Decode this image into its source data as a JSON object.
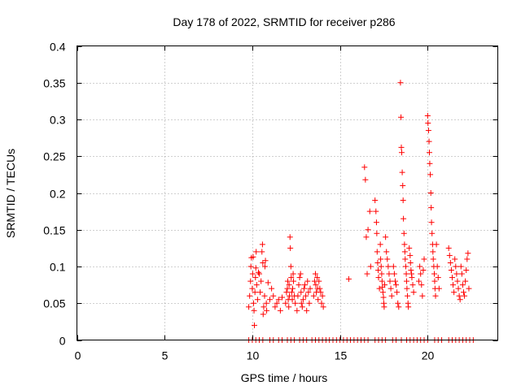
{
  "chart_data": {
    "type": "scatter",
    "title": "Day 178 of 2022, SRMTID for receiver p286",
    "xlabel": "GPS time / hours",
    "ylabel": "SRMTID / TECUs",
    "xlim": [
      0,
      24
    ],
    "ylim": [
      0,
      0.4
    ],
    "x_ticks": [
      0,
      5,
      10,
      15,
      20
    ],
    "x_tick_labels": [
      "0",
      "5",
      "10",
      "15",
      "20"
    ],
    "y_ticks": [
      0,
      0.05,
      0.1,
      0.15,
      0.2,
      0.25,
      0.3,
      0.35,
      0.4
    ],
    "y_tick_labels": [
      "0",
      "0.05",
      "0.1",
      "0.15",
      "0.2",
      "0.25",
      "0.3",
      "0.35",
      "0.4"
    ],
    "grid": true,
    "marker": "+",
    "marker_color": "#ff0000",
    "series": [
      {
        "name": "SRMTID",
        "points": [
          [
            9.8,
            0.045
          ],
          [
            9.85,
            0.06
          ],
          [
            9.9,
            0.08
          ],
          [
            9.92,
            0.1
          ],
          [
            9.95,
            0.112
          ],
          [
            10.0,
            0.07
          ],
          [
            10.02,
            0.09
          ],
          [
            10.05,
            0.113
          ],
          [
            10.07,
            0.05
          ],
          [
            10.1,
            0.04
          ],
          [
            10.12,
            0.02
          ],
          [
            10.15,
            0.065
          ],
          [
            10.18,
            0.085
          ],
          [
            10.2,
            0.098
          ],
          [
            10.22,
            0.12
          ],
          [
            10.25,
            0.075
          ],
          [
            10.3,
            0.055
          ],
          [
            10.35,
            0.092
          ],
          [
            10.4,
            0.09
          ],
          [
            10.45,
            0.065
          ],
          [
            10.5,
            0.08
          ],
          [
            10.55,
            0.12
          ],
          [
            10.58,
            0.13
          ],
          [
            10.6,
            0.105
          ],
          [
            10.62,
            0.035
          ],
          [
            10.65,
            0.045
          ],
          [
            10.7,
            0.06
          ],
          [
            10.72,
            0.1
          ],
          [
            10.75,
            0.108
          ],
          [
            10.8,
            0.05
          ],
          [
            10.82,
            0.04
          ],
          [
            10.9,
            0.078
          ],
          [
            11.0,
            0.055
          ],
          [
            11.1,
            0.07
          ],
          [
            11.2,
            0.06
          ],
          [
            11.3,
            0.045
          ],
          [
            11.4,
            0.05
          ],
          [
            11.5,
            0.055
          ],
          [
            11.6,
            0.04
          ],
          [
            11.7,
            0.058
          ],
          [
            11.9,
            0.05
          ],
          [
            11.95,
            0.065
          ],
          [
            12.0,
            0.07
          ],
          [
            12.02,
            0.08
          ],
          [
            12.05,
            0.055
          ],
          [
            12.08,
            0.045
          ],
          [
            12.1,
            0.075
          ],
          [
            12.12,
            0.06
          ],
          [
            12.15,
            0.14
          ],
          [
            12.17,
            0.125
          ],
          [
            12.2,
            0.1
          ],
          [
            12.22,
            0.085
          ],
          [
            12.25,
            0.065
          ],
          [
            12.28,
            0.055
          ],
          [
            12.3,
            0.07
          ],
          [
            12.33,
            0.09
          ],
          [
            12.35,
            0.08
          ],
          [
            12.4,
            0.06
          ],
          [
            12.45,
            0.05
          ],
          [
            12.55,
            0.04
          ],
          [
            12.6,
            0.06
          ],
          [
            12.65,
            0.075
          ],
          [
            12.7,
            0.085
          ],
          [
            12.75,
            0.09
          ],
          [
            12.78,
            0.065
          ],
          [
            12.8,
            0.05
          ],
          [
            12.85,
            0.045
          ],
          [
            12.9,
            0.055
          ],
          [
            12.95,
            0.07
          ],
          [
            13.0,
            0.075
          ],
          [
            13.05,
            0.06
          ],
          [
            13.1,
            0.04
          ],
          [
            13.15,
            0.08
          ],
          [
            13.2,
            0.065
          ],
          [
            13.25,
            0.05
          ],
          [
            13.3,
            0.07
          ],
          [
            13.5,
            0.06
          ],
          [
            13.55,
            0.08
          ],
          [
            13.6,
            0.09
          ],
          [
            13.62,
            0.075
          ],
          [
            13.65,
            0.065
          ],
          [
            13.7,
            0.085
          ],
          [
            13.72,
            0.07
          ],
          [
            13.75,
            0.055
          ],
          [
            13.8,
            0.08
          ],
          [
            13.85,
            0.07
          ],
          [
            13.9,
            0.065
          ],
          [
            13.95,
            0.05
          ],
          [
            14.0,
            0.06
          ],
          [
            14.05,
            0.045
          ],
          [
            15.5,
            0.083
          ],
          [
            16.4,
            0.235
          ],
          [
            16.45,
            0.218
          ],
          [
            16.5,
            0.14
          ],
          [
            16.55,
            0.09
          ],
          [
            16.6,
            0.15
          ],
          [
            16.7,
            0.175
          ],
          [
            16.75,
            0.1
          ],
          [
            17.0,
            0.19
          ],
          [
            17.05,
            0.175
          ],
          [
            17.08,
            0.16
          ],
          [
            17.1,
            0.145
          ],
          [
            17.12,
            0.12
          ],
          [
            17.15,
            0.105
          ],
          [
            17.18,
            0.095
          ],
          [
            17.2,
            0.085
          ],
          [
            17.25,
            0.07
          ],
          [
            17.3,
            0.13
          ],
          [
            17.32,
            0.11
          ],
          [
            17.35,
            0.1
          ],
          [
            17.38,
            0.09
          ],
          [
            17.4,
            0.08
          ],
          [
            17.42,
            0.072
          ],
          [
            17.45,
            0.065
          ],
          [
            17.48,
            0.058
          ],
          [
            17.5,
            0.05
          ],
          [
            17.52,
            0.045
          ],
          [
            17.55,
            0.075
          ],
          [
            17.6,
            0.14
          ],
          [
            17.65,
            0.12
          ],
          [
            17.7,
            0.11
          ],
          [
            17.75,
            0.1
          ],
          [
            17.8,
            0.09
          ],
          [
            17.85,
            0.08
          ],
          [
            17.9,
            0.07
          ],
          [
            17.95,
            0.06
          ],
          [
            18.05,
            0.1
          ],
          [
            18.1,
            0.09
          ],
          [
            18.15,
            0.08
          ],
          [
            18.2,
            0.075
          ],
          [
            18.25,
            0.065
          ],
          [
            18.3,
            0.05
          ],
          [
            18.35,
            0.045
          ],
          [
            18.45,
            0.35
          ],
          [
            18.48,
            0.303
          ],
          [
            18.5,
            0.262
          ],
          [
            18.52,
            0.255
          ],
          [
            18.55,
            0.228
          ],
          [
            18.58,
            0.21
          ],
          [
            18.6,
            0.19
          ],
          [
            18.62,
            0.165
          ],
          [
            18.65,
            0.145
          ],
          [
            18.68,
            0.13
          ],
          [
            18.7,
            0.12
          ],
          [
            18.72,
            0.11
          ],
          [
            18.75,
            0.1
          ],
          [
            18.78,
            0.09
          ],
          [
            18.8,
            0.08
          ],
          [
            18.82,
            0.07
          ],
          [
            18.85,
            0.06
          ],
          [
            18.88,
            0.05
          ],
          [
            18.9,
            0.045
          ],
          [
            18.95,
            0.125
          ],
          [
            19.0,
            0.115
          ],
          [
            19.02,
            0.105
          ],
          [
            19.05,
            0.095
          ],
          [
            19.08,
            0.09
          ],
          [
            19.1,
            0.085
          ],
          [
            19.15,
            0.075
          ],
          [
            19.2,
            0.065
          ],
          [
            19.5,
            0.08
          ],
          [
            19.55,
            0.1
          ],
          [
            19.6,
            0.09
          ],
          [
            19.65,
            0.075
          ],
          [
            19.7,
            0.06
          ],
          [
            19.75,
            0.095
          ],
          [
            19.8,
            0.11
          ],
          [
            20.0,
            0.305
          ],
          [
            20.02,
            0.295
          ],
          [
            20.05,
            0.285
          ],
          [
            20.08,
            0.27
          ],
          [
            20.1,
            0.255
          ],
          [
            20.12,
            0.24
          ],
          [
            20.15,
            0.225
          ],
          [
            20.18,
            0.2
          ],
          [
            20.2,
            0.18
          ],
          [
            20.22,
            0.16
          ],
          [
            20.25,
            0.145
          ],
          [
            20.28,
            0.13
          ],
          [
            20.3,
            0.12
          ],
          [
            20.32,
            0.11
          ],
          [
            20.35,
            0.1
          ],
          [
            20.38,
            0.09
          ],
          [
            20.4,
            0.08
          ],
          [
            20.42,
            0.07
          ],
          [
            20.45,
            0.06
          ],
          [
            20.5,
            0.13
          ],
          [
            20.55,
            0.1
          ],
          [
            20.6,
            0.085
          ],
          [
            20.65,
            0.07
          ],
          [
            21.2,
            0.125
          ],
          [
            21.25,
            0.115
          ],
          [
            21.3,
            0.105
          ],
          [
            21.35,
            0.095
          ],
          [
            21.4,
            0.085
          ],
          [
            21.45,
            0.075
          ],
          [
            21.5,
            0.065
          ],
          [
            21.55,
            0.11
          ],
          [
            21.6,
            0.1
          ],
          [
            21.65,
            0.09
          ],
          [
            21.7,
            0.08
          ],
          [
            21.75,
            0.07
          ],
          [
            21.8,
            0.06
          ],
          [
            21.85,
            0.055
          ],
          [
            21.9,
            0.1
          ],
          [
            21.95,
            0.09
          ],
          [
            22.0,
            0.075
          ],
          [
            22.05,
            0.065
          ],
          [
            22.1,
            0.06
          ],
          [
            22.15,
            0.08
          ],
          [
            22.2,
            0.095
          ],
          [
            22.25,
            0.11
          ],
          [
            22.3,
            0.118
          ],
          [
            22.35,
            0.07
          ],
          [
            9.8,
            0
          ],
          [
            10.0,
            0
          ],
          [
            10.2,
            0
          ],
          [
            10.4,
            0
          ],
          [
            10.6,
            0
          ],
          [
            11.0,
            0
          ],
          [
            11.2,
            0
          ],
          [
            11.5,
            0
          ],
          [
            11.7,
            0
          ],
          [
            12.0,
            0
          ],
          [
            12.2,
            0
          ],
          [
            12.4,
            0
          ],
          [
            12.7,
            0
          ],
          [
            12.9,
            0
          ],
          [
            13.1,
            0
          ],
          [
            13.4,
            0
          ],
          [
            13.6,
            0
          ],
          [
            13.8,
            0
          ],
          [
            14.0,
            0
          ],
          [
            14.2,
            0
          ],
          [
            14.4,
            0
          ],
          [
            14.6,
            0
          ],
          [
            14.8,
            0
          ],
          [
            15.0,
            0
          ],
          [
            15.2,
            0
          ],
          [
            15.4,
            0
          ],
          [
            15.6,
            0
          ],
          [
            15.8,
            0
          ],
          [
            16.0,
            0
          ],
          [
            16.2,
            0
          ],
          [
            16.4,
            0
          ],
          [
            16.6,
            0
          ],
          [
            17.0,
            0
          ],
          [
            17.2,
            0
          ],
          [
            17.4,
            0
          ],
          [
            17.6,
            0
          ],
          [
            18.0,
            0
          ],
          [
            18.2,
            0
          ],
          [
            18.5,
            0
          ],
          [
            18.8,
            0
          ],
          [
            19.0,
            0
          ],
          [
            19.2,
            0
          ],
          [
            19.4,
            0
          ],
          [
            19.6,
            0
          ],
          [
            19.8,
            0
          ],
          [
            20.0,
            0
          ],
          [
            20.4,
            0
          ],
          [
            20.6,
            0
          ],
          [
            20.8,
            0
          ],
          [
            21.2,
            0
          ],
          [
            21.4,
            0
          ],
          [
            21.6,
            0
          ],
          [
            21.8,
            0
          ],
          [
            22.0,
            0
          ],
          [
            22.2,
            0
          ],
          [
            22.4,
            0
          ],
          [
            22.6,
            0
          ]
        ]
      }
    ]
  }
}
